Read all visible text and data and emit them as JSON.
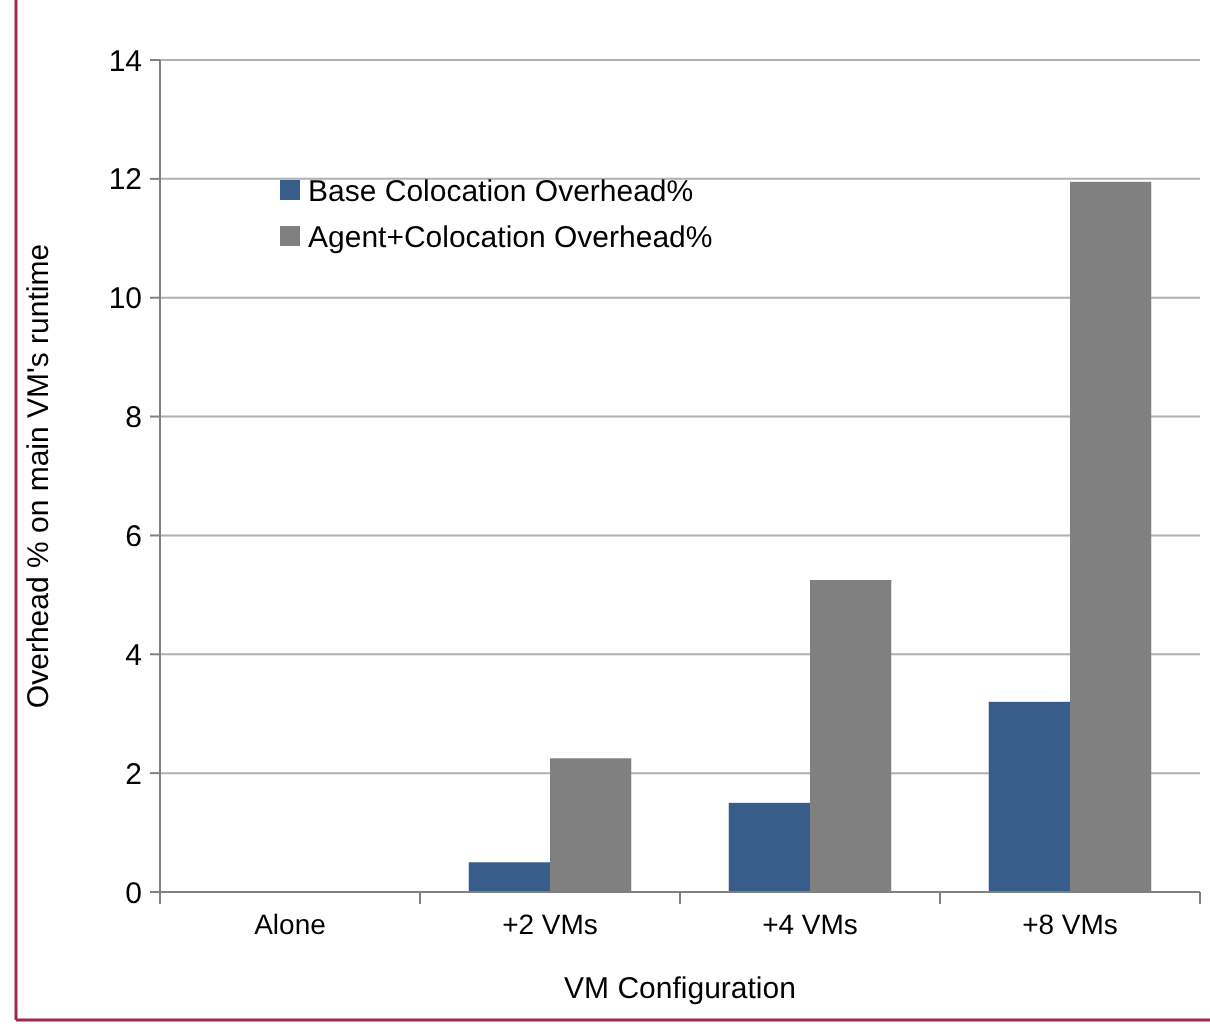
{
  "chart_data": {
    "type": "bar",
    "xlabel": "VM Configuration",
    "ylabel": "Overhead % on main VM's runtime",
    "categories": [
      "Alone",
      "+2 VMs",
      "+4 VMs",
      "+8 VMs"
    ],
    "series": [
      {
        "name": "Base Colocation Overhead%",
        "color": "#385d8a",
        "values": [
          0,
          0.5,
          1.5,
          3.2
        ]
      },
      {
        "name": "Agent+Colocation Overhead%",
        "color": "#808080",
        "values": [
          0,
          2.25,
          5.25,
          11.95
        ]
      }
    ],
    "ylim": [
      0,
      14
    ],
    "yticks": [
      0,
      2,
      4,
      6,
      8,
      10,
      12,
      14
    ],
    "grid": "y",
    "legend": "top left"
  }
}
